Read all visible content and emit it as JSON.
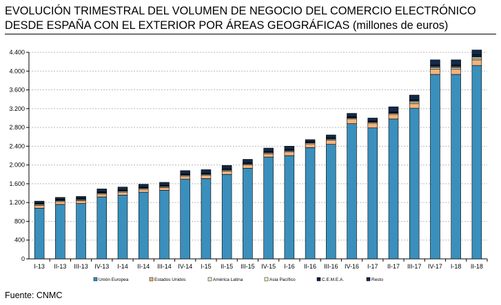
{
  "title_line1": "EVOLUCIÓN TRIMESTRAL DEL VOLUMEN DE NEGOCIO DEL COMERCIO ELECTRÓNICO",
  "title_line2": "DESDE ESPAÑA CON EL EXTERIOR POR ÁREAS GEOGRÁFICAS",
  "title_units": "(millones de euros)",
  "source": "Fuente: CNMC",
  "chart_data": {
    "type": "bar",
    "stacked": true,
    "grid": true,
    "legend_position": "bottom",
    "ylim": [
      0,
      4400
    ],
    "yticks": [
      0,
      400,
      800,
      1200,
      1600,
      2000,
      2400,
      2800,
      3200,
      3600,
      4000,
      4400
    ],
    "ytick_labels": [
      "0",
      "400",
      "800",
      "1.200",
      "1.600",
      "2.000",
      "2.400",
      "2.800",
      "3.200",
      "3.600",
      "4.000",
      "4.400"
    ],
    "categories": [
      "I-13",
      "II-13",
      "III-13",
      "IV-13",
      "I-14",
      "II-14",
      "III-14",
      "IV-14",
      "I-15",
      "II-15",
      "III-15",
      "IV-15",
      "I-16",
      "II-16",
      "III-16",
      "IV-16",
      "I-17",
      "II-17",
      "III-17",
      "IV-17",
      "I-18",
      "II-18"
    ],
    "series": [
      {
        "name": "Unión Europea",
        "color": "#3a8fbc",
        "values": [
          1080,
          1160,
          1180,
          1320,
          1360,
          1420,
          1460,
          1700,
          1710,
          1800,
          1930,
          2170,
          2200,
          2370,
          2440,
          2880,
          2790,
          2980,
          3210,
          3930,
          3930,
          4120
        ]
      },
      {
        "name": "Estados Unidos",
        "color": "#f3b37e",
        "values": [
          60,
          60,
          60,
          60,
          60,
          60,
          60,
          60,
          70,
          70,
          70,
          70,
          80,
          80,
          90,
          100,
          100,
          100,
          100,
          110,
          110,
          120
        ]
      },
      {
        "name": "América Latina",
        "color": "#e5f0d6",
        "values": [
          20,
          20,
          20,
          20,
          20,
          20,
          20,
          20,
          20,
          20,
          20,
          20,
          20,
          20,
          20,
          20,
          20,
          20,
          30,
          30,
          30,
          30
        ]
      },
      {
        "name": "Asia Pacífico",
        "color": "#fff2c0",
        "values": [
          10,
          10,
          10,
          10,
          10,
          10,
          10,
          10,
          10,
          10,
          10,
          10,
          10,
          10,
          10,
          10,
          10,
          10,
          20,
          20,
          20,
          30
        ]
      },
      {
        "name": "C.E.M.E.A.",
        "color": "#0b1f3a",
        "values": [
          20,
          20,
          20,
          20,
          20,
          20,
          20,
          20,
          20,
          20,
          20,
          20,
          20,
          20,
          20,
          20,
          20,
          20,
          30,
          40,
          40,
          50
        ]
      },
      {
        "name": "Resto",
        "color": "#122a4a",
        "values": [
          40,
          40,
          40,
          60,
          60,
          60,
          60,
          70,
          70,
          70,
          70,
          70,
          70,
          40,
          60,
          70,
          60,
          110,
          100,
          110,
          110,
          100
        ]
      }
    ]
  }
}
